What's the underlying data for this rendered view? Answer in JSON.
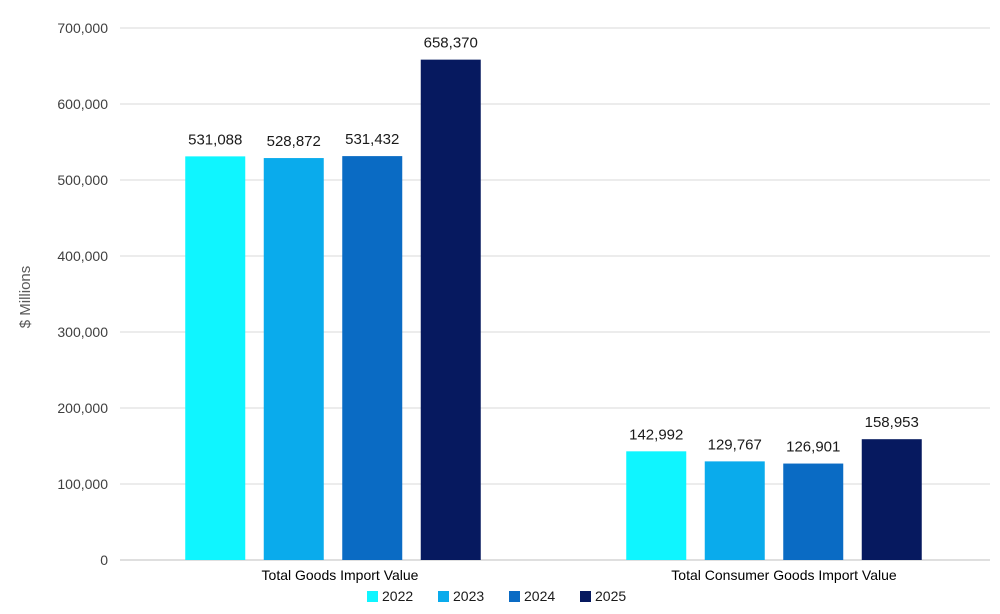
{
  "chart_data": {
    "type": "bar",
    "categories": [
      "Total Goods Import Value",
      "Total Consumer Goods Import Value"
    ],
    "series": [
      {
        "name": "2022",
        "color": "#0ff5ff",
        "values": [
          531088,
          142992
        ]
      },
      {
        "name": "2023",
        "color": "#0aabec",
        "values": [
          528872,
          129767
        ]
      },
      {
        "name": "2024",
        "color": "#0a6bc4",
        "values": [
          531432,
          126901
        ]
      },
      {
        "name": "2025",
        "color": "#06195f",
        "values": [
          658370,
          158953
        ]
      }
    ],
    "data_labels": [
      [
        "531,088",
        "142,992"
      ],
      [
        "528,872",
        "129,767"
      ],
      [
        "531,432",
        "126,901"
      ],
      [
        "658,370",
        "158,953"
      ]
    ],
    "title": "",
    "xlabel": "",
    "ylabel": "$ Millions",
    "ylim": [
      0,
      700000
    ],
    "yticks": [
      0,
      100000,
      200000,
      300000,
      400000,
      500000,
      600000,
      700000
    ],
    "ytick_labels": [
      "0",
      "100,000",
      "200,000",
      "300,000",
      "400,000",
      "500,000",
      "600,000",
      "700,000"
    ],
    "grid": true,
    "legend_position": "bottom"
  }
}
